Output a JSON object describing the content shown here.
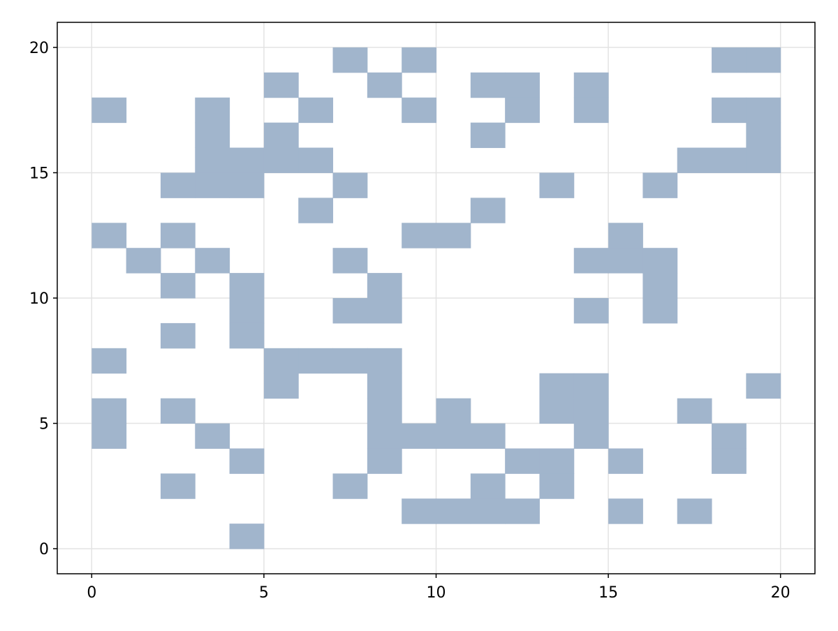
{
  "chart_data": {
    "type": "cells",
    "color": "#a1b5cc",
    "grid": true,
    "x": [
      7,
      9,
      18,
      19,
      5,
      8,
      11,
      12,
      14,
      0,
      3,
      6,
      9,
      12,
      14,
      18,
      19,
      3,
      5,
      11,
      19,
      3,
      4,
      5,
      6,
      17,
      18,
      19,
      2,
      3,
      4,
      7,
      13,
      16,
      6,
      11,
      0,
      2,
      9,
      10,
      15,
      1,
      3,
      7,
      14,
      15,
      16,
      2,
      4,
      8,
      16,
      4,
      7,
      8,
      14,
      16,
      2,
      4,
      0,
      5,
      6,
      7,
      8,
      5,
      8,
      13,
      14,
      19,
      0,
      2,
      8,
      10,
      13,
      14,
      17,
      0,
      3,
      8,
      9,
      10,
      11,
      14,
      18,
      4,
      8,
      12,
      13,
      15,
      18,
      2,
      7,
      11,
      13,
      9,
      10,
      11,
      12,
      15,
      17,
      4
    ],
    "y": [
      19,
      19,
      19,
      19,
      18,
      18,
      18,
      18,
      18,
      17,
      17,
      17,
      17,
      17,
      17,
      17,
      17,
      16,
      16,
      16,
      16,
      15,
      15,
      15,
      15,
      15,
      15,
      15,
      14,
      14,
      14,
      14,
      14,
      14,
      13,
      13,
      12,
      12,
      12,
      12,
      12,
      11,
      11,
      11,
      11,
      11,
      11,
      10,
      10,
      10,
      10,
      9,
      9,
      9,
      9,
      9,
      8,
      8,
      7,
      7,
      7,
      7,
      7,
      6,
      6,
      6,
      6,
      6,
      5,
      5,
      5,
      5,
      5,
      5,
      5,
      4,
      4,
      4,
      4,
      4,
      4,
      4,
      4,
      3,
      3,
      3,
      3,
      3,
      3,
      2,
      2,
      2,
      2,
      1,
      1,
      1,
      1,
      1,
      1,
      0
    ],
    "xlim": [
      -1,
      21
    ],
    "ylim": [
      -1,
      21
    ],
    "xticks": [
      0,
      5,
      10,
      15,
      20
    ],
    "yticks": [
      0,
      5,
      10,
      15,
      20
    ]
  }
}
